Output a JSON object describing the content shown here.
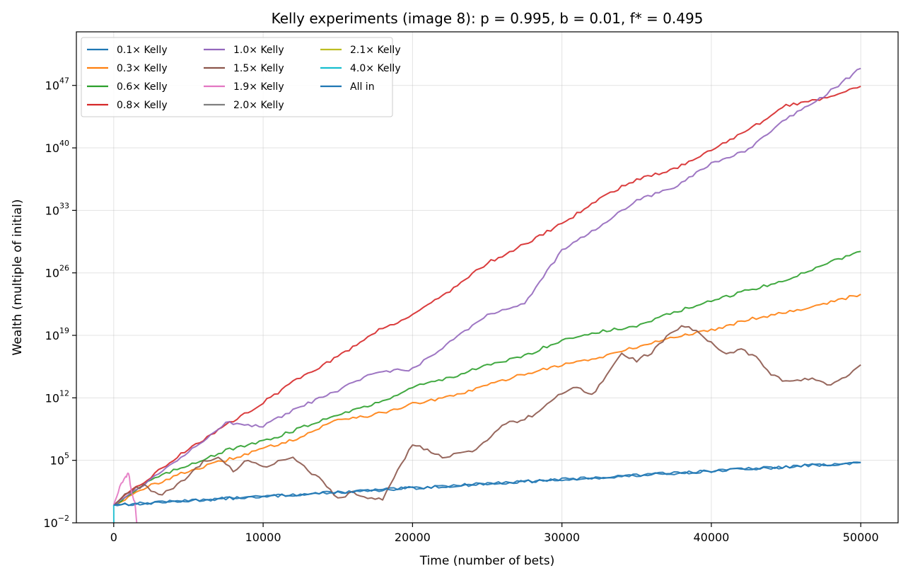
{
  "chart_data": {
    "type": "line",
    "title": "Kelly experiments (image 8): p = 0.995, b = 0.01, f* = 0.495",
    "xlabel": "Time (number of bets)",
    "ylabel": "Wealth (multiple of initial)",
    "xlim": [
      -2500,
      52500
    ],
    "ylim_log10": [
      -2,
      53
    ],
    "y_scale": "log",
    "grid": true,
    "legend_position": "top-left",
    "legend_columns": 3,
    "x_ticks": [
      {
        "value": 0,
        "label": "0"
      },
      {
        "value": 10000,
        "label": "10000"
      },
      {
        "value": 20000,
        "label": "20000"
      },
      {
        "value": 30000,
        "label": "30000"
      },
      {
        "value": 40000,
        "label": "40000"
      },
      {
        "value": 50000,
        "label": "50000"
      }
    ],
    "y_ticks": [
      {
        "exp": -2,
        "base": "10",
        "sup": "−2"
      },
      {
        "exp": 5,
        "base": "10",
        "sup": "5"
      },
      {
        "exp": 12,
        "base": "10",
        "sup": "12"
      },
      {
        "exp": 19,
        "base": "10",
        "sup": "19"
      },
      {
        "exp": 26,
        "base": "10",
        "sup": "26"
      },
      {
        "exp": 33,
        "base": "10",
        "sup": "33"
      },
      {
        "exp": 40,
        "base": "10",
        "sup": "40"
      },
      {
        "exp": 47,
        "base": "10",
        "sup": "47"
      }
    ],
    "series": [
      {
        "name": "0.1× Kelly",
        "color": "#1f77b4",
        "x": [
          0,
          10000,
          20000,
          30000,
          40000,
          50000
        ],
        "log10_y": [
          0,
          0.95,
          1.9,
          2.85,
          3.8,
          4.75
        ]
      },
      {
        "name": "0.3× Kelly",
        "color": "#ff7f0e",
        "x": [
          0,
          2500,
          5000,
          7500,
          10000,
          12500,
          15000,
          17500,
          20000,
          22500,
          25000,
          27500,
          30000,
          32500,
          35000,
          37500,
          40000,
          42500,
          45000,
          47500,
          50000
        ],
        "log10_y": [
          0,
          2.2,
          3.8,
          5.0,
          6.3,
          7.6,
          9.6,
          10.1,
          11.3,
          12.1,
          13.4,
          14.7,
          15.7,
          16.5,
          17.7,
          18.8,
          19.6,
          20.8,
          21.6,
          22.5,
          23.6
        ]
      },
      {
        "name": "0.6× Kelly",
        "color": "#2ca02c",
        "x": [
          0,
          2500,
          5000,
          7500,
          10000,
          12500,
          15000,
          17500,
          20000,
          22500,
          25000,
          27500,
          30000,
          32500,
          35000,
          37500,
          40000,
          42500,
          45000,
          47500,
          50000
        ],
        "log10_y": [
          0,
          2.8,
          4.5,
          6.1,
          7.1,
          8.6,
          10.2,
          11.3,
          13.2,
          14.3,
          15.6,
          16.7,
          18.5,
          19.4,
          20.0,
          21.6,
          22.8,
          24.1,
          25.1,
          27.0,
          28.4
        ]
      },
      {
        "name": "0.8× Kelly",
        "color": "#d62728",
        "x": [
          0,
          2500,
          5000,
          7500,
          10000,
          12500,
          15000,
          17500,
          20000,
          22500,
          25000,
          27500,
          30000,
          32500,
          35000,
          37500,
          40000,
          42500,
          45000,
          47500,
          50000
        ],
        "log10_y": [
          0,
          3.2,
          6.3,
          8.9,
          11.5,
          14.3,
          16.6,
          19.4,
          21.3,
          24.0,
          27.1,
          29.2,
          31.5,
          34.3,
          36.5,
          37.6,
          39.8,
          42.0,
          44.7,
          45.6,
          46.9
        ]
      },
      {
        "name": "1.0× Kelly",
        "color": "#9467bd",
        "x": [
          0,
          2500,
          5000,
          7500,
          10000,
          12500,
          15000,
          17500,
          20000,
          22500,
          25000,
          27500,
          30000,
          32500,
          35000,
          37500,
          40000,
          42500,
          45000,
          47500,
          50000
        ],
        "log10_y": [
          0,
          2.9,
          6.0,
          9.2,
          8.8,
          11.0,
          12.8,
          14.9,
          15.2,
          18.3,
          21.3,
          22.6,
          28.5,
          31.2,
          34.1,
          35.6,
          38.2,
          39.8,
          43.2,
          45.8,
          48.9
        ]
      },
      {
        "name": "1.5× Kelly",
        "color": "#8c564b",
        "x": [
          0,
          1000,
          2000,
          3000,
          4000,
          5000,
          6000,
          7000,
          8000,
          9000,
          10000,
          11000,
          12000,
          13000,
          14000,
          15000,
          16000,
          17000,
          18000,
          19000,
          20000,
          21000,
          22000,
          23000,
          24000,
          25000,
          26000,
          27000,
          28000,
          29000,
          30000,
          31000,
          32000,
          33000,
          34000,
          35000,
          36000,
          37000,
          38000,
          39000,
          40000,
          41000,
          42000,
          43000,
          44000,
          45000,
          46000,
          47000,
          48000,
          49000,
          50000
        ],
        "log10_y": [
          0,
          1.5,
          2.2,
          1.1,
          1.8,
          3.3,
          4.8,
          5.3,
          3.8,
          5.1,
          4.3,
          4.8,
          5.2,
          3.9,
          2.7,
          0.7,
          1.4,
          0.9,
          0.6,
          3.8,
          6.8,
          6.2,
          5.3,
          5.7,
          6.0,
          7.4,
          9.0,
          9.4,
          10.0,
          11.2,
          12.6,
          13.3,
          12.3,
          14.5,
          17.0,
          16.2,
          17.1,
          18.8,
          20.1,
          19.5,
          18.2,
          16.8,
          17.4,
          16.5,
          14.6,
          13.8,
          14.0,
          14.1,
          13.4,
          14.3,
          15.7
        ]
      },
      {
        "name": "1.9× Kelly",
        "color": "#e377c2",
        "x": [
          0,
          400,
          800,
          1000,
          1200,
          1400,
          1600
        ],
        "log10_y": [
          0,
          2.0,
          3.1,
          3.6,
          1.2,
          0.5,
          -3.0
        ]
      },
      {
        "name": "2.0× Kelly",
        "color": "#7f7f7f",
        "x": [],
        "log10_y": []
      },
      {
        "name": "2.1× Kelly",
        "color": "#bcbd22",
        "x": [],
        "log10_y": []
      },
      {
        "name": "4.0× Kelly",
        "color": "#17becf",
        "x": [
          0,
          10
        ],
        "log10_y": [
          0,
          -3
        ]
      },
      {
        "name": "All in",
        "color": "#1f77b4",
        "x": [
          0,
          10000,
          20000,
          30000,
          40000,
          50000
        ],
        "log10_y": [
          0,
          0.95,
          1.9,
          2.85,
          3.8,
          4.75
        ]
      }
    ]
  }
}
